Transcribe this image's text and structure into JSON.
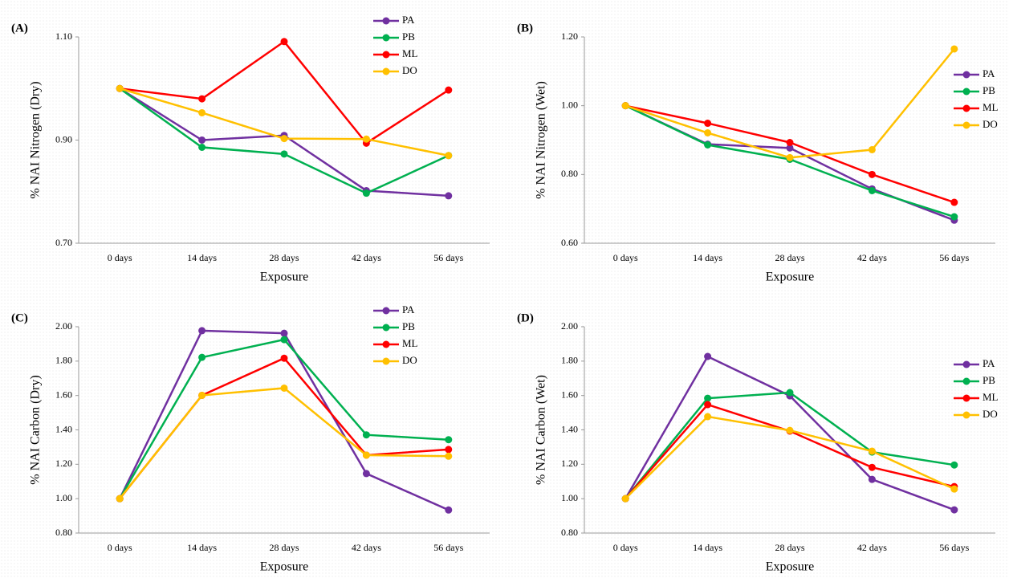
{
  "chart_data": [
    {
      "type": "line",
      "label": "(A)",
      "y_label": "% NAI Nitrogen (Dry)",
      "x_label": "Exposure",
      "legend": "upper center",
      "categories": [
        "0 days",
        "14 days",
        "28 days",
        "42 days",
        "56 days"
      ],
      "ylim": [
        0.7,
        1.1
      ],
      "yticks": [
        {
          "value": 0.7,
          "label": "0.70"
        },
        {
          "value": 0.9,
          "label": "0.90"
        },
        {
          "value": 1.1,
          "label": "1.10"
        }
      ],
      "series": [
        {
          "name": "PA",
          "color": "#7030a0",
          "values": [
            1.0,
            0.9,
            0.909,
            0.802,
            0.792
          ]
        },
        {
          "name": "PB",
          "color": "#00b050",
          "values": [
            1.0,
            0.886,
            0.873,
            0.797,
            0.87
          ]
        },
        {
          "name": "ML",
          "color": "#ff0000",
          "values": [
            1.0,
            0.98,
            1.091,
            0.894,
            0.997
          ]
        },
        {
          "name": "DO",
          "color": "#ffc000",
          "values": [
            1.0,
            0.953,
            0.903,
            0.902,
            0.87
          ]
        }
      ]
    },
    {
      "type": "line",
      "label": "(B)",
      "y_label": "% NAI Nitrogen (Wet)",
      "x_label": "Exposure",
      "legend": "right",
      "categories": [
        "0 days",
        "14 days",
        "28 days",
        "42 days",
        "56 days"
      ],
      "ylim": [
        0.6,
        1.2
      ],
      "yticks": [
        {
          "value": 0.6,
          "label": "0.60"
        },
        {
          "value": 0.8,
          "label": "0.80"
        },
        {
          "value": 1.0,
          "label": "1.00"
        },
        {
          "value": 1.2,
          "label": "1.20"
        }
      ],
      "series": [
        {
          "name": "PA",
          "color": "#7030a0",
          "values": [
            1.0,
            0.888,
            0.877,
            0.758,
            0.667
          ]
        },
        {
          "name": "PB",
          "color": "#00b050",
          "values": [
            1.0,
            0.886,
            0.844,
            0.753,
            0.677
          ]
        },
        {
          "name": "ML",
          "color": "#ff0000",
          "values": [
            1.0,
            0.949,
            0.893,
            0.8,
            0.719
          ]
        },
        {
          "name": "DO",
          "color": "#ffc000",
          "values": [
            1.0,
            0.921,
            0.849,
            0.872,
            1.165
          ]
        }
      ]
    },
    {
      "type": "line",
      "label": "(C)",
      "y_label": "% NAI Carbon (Dry)",
      "x_label": "Exposure",
      "legend": "upper center",
      "categories": [
        "0 days",
        "14 days",
        "28 days",
        "42 days",
        "56 days"
      ],
      "ylim": [
        0.8,
        2.0
      ],
      "yticks": [
        {
          "value": 0.8,
          "label": "0.80"
        },
        {
          "value": 1.0,
          "label": "1.00"
        },
        {
          "value": 1.2,
          "label": "1.20"
        },
        {
          "value": 1.4,
          "label": "1.40"
        },
        {
          "value": 1.6,
          "label": "1.60"
        },
        {
          "value": 1.8,
          "label": "1.80"
        },
        {
          "value": 2.0,
          "label": "2.00"
        }
      ],
      "series": [
        {
          "name": "PA",
          "color": "#7030a0",
          "values": [
            1.0,
            1.977,
            1.962,
            1.146,
            0.934
          ]
        },
        {
          "name": "PB",
          "color": "#00b050",
          "values": [
            1.0,
            1.822,
            1.925,
            1.371,
            1.343
          ]
        },
        {
          "name": "ML",
          "color": "#ff0000",
          "values": [
            1.0,
            1.601,
            1.817,
            1.253,
            1.286
          ]
        },
        {
          "name": "DO",
          "color": "#ffc000",
          "values": [
            1.0,
            1.601,
            1.643,
            1.253,
            1.247
          ]
        }
      ]
    },
    {
      "type": "line",
      "label": "(D)",
      "y_label": "% NAI Carbon (Wet)",
      "x_label": "Exposure",
      "legend": "right",
      "categories": [
        "0 days",
        "14 days",
        "28 days",
        "42 days",
        "56 days"
      ],
      "ylim": [
        0.8,
        2.0
      ],
      "yticks": [
        {
          "value": 0.8,
          "label": "0.80"
        },
        {
          "value": 1.0,
          "label": "1.00"
        },
        {
          "value": 1.2,
          "label": "1.20"
        },
        {
          "value": 1.4,
          "label": "1.40"
        },
        {
          "value": 1.6,
          "label": "1.60"
        },
        {
          "value": 1.8,
          "label": "1.80"
        },
        {
          "value": 2.0,
          "label": "2.00"
        }
      ],
      "series": [
        {
          "name": "PA",
          "color": "#7030a0",
          "values": [
            1.0,
            1.827,
            1.598,
            1.112,
            0.935
          ]
        },
        {
          "name": "PB",
          "color": "#00b050",
          "values": [
            1.0,
            1.584,
            1.617,
            1.271,
            1.196
          ]
        },
        {
          "name": "ML",
          "color": "#ff0000",
          "values": [
            1.0,
            1.547,
            1.393,
            1.182,
            1.07
          ]
        },
        {
          "name": "DO",
          "color": "#ffc000",
          "values": [
            1.0,
            1.477,
            1.397,
            1.276,
            1.056
          ]
        }
      ]
    }
  ]
}
